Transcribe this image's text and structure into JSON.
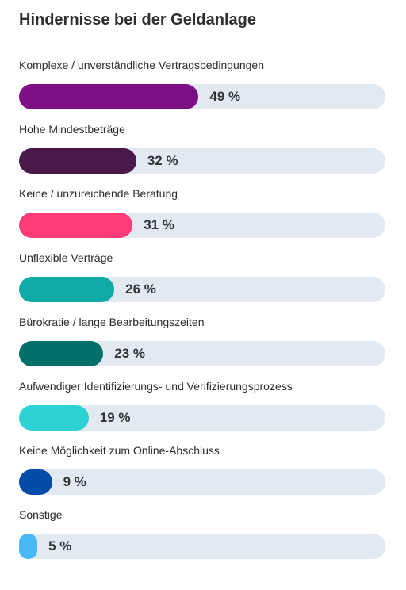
{
  "chart_data": {
    "type": "bar",
    "orientation": "horizontal",
    "title": "Hindernisse bei der Geldanlage",
    "xlim": [
      0,
      100
    ],
    "unit": "%",
    "categories": [
      "Komplexe / unverständliche Vertragsbedingungen",
      "Hohe Mindestbeträge",
      "Keine / unzureichende Beratung",
      "Unflexible Verträge",
      "Bürokratie / lange Bearbeitungszeiten",
      "Aufwendiger Identifizierungs- und Verifizierungsprozess",
      "Keine Möglichkeit zum Online-Abschluss",
      "Sonstige"
    ],
    "values": [
      49,
      32,
      31,
      26,
      23,
      19,
      9,
      5
    ],
    "value_labels": [
      "49 %",
      "32 %",
      "31 %",
      "26 %",
      "23 %",
      "19 %",
      "9 %",
      "5 %"
    ],
    "colors": [
      "#7d1084",
      "#4a1849",
      "#ff3b78",
      "#0fa9a6",
      "#026f6b",
      "#2dd3d4",
      "#054ba8",
      "#48b8f6"
    ],
    "track_color": "#e3e9f1",
    "grid": false,
    "legend": "none"
  }
}
